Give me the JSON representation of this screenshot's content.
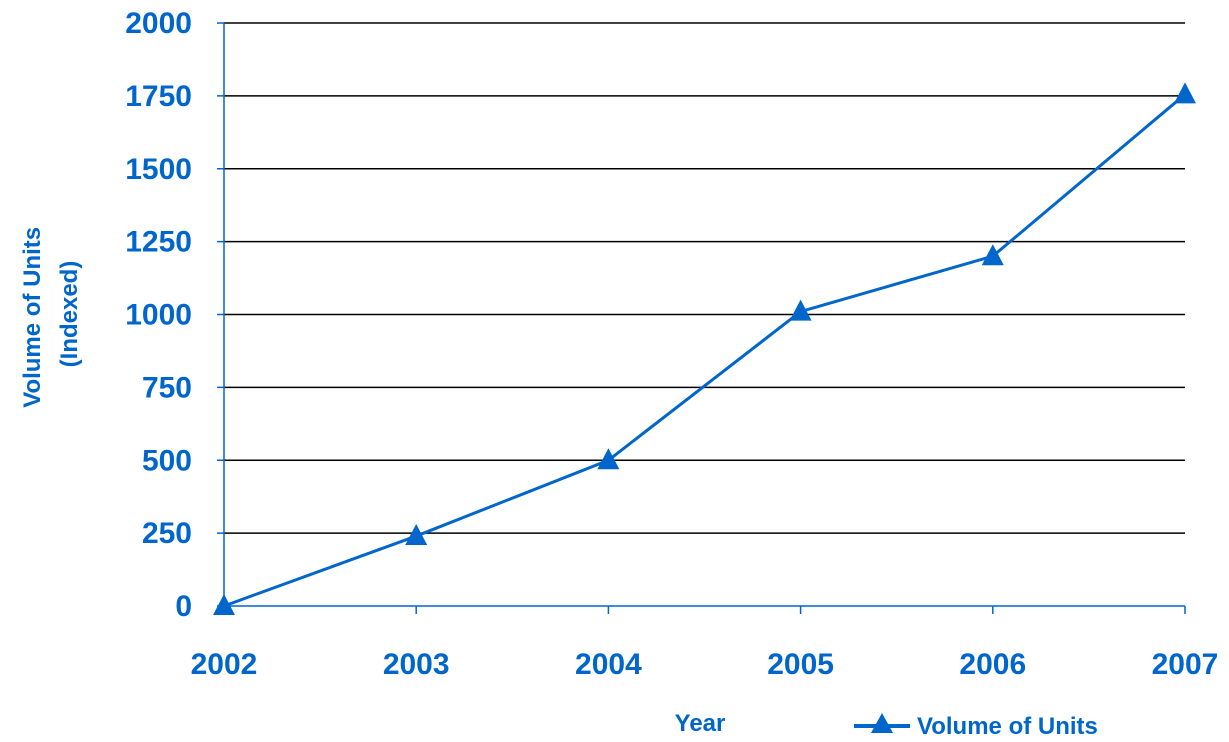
{
  "chart_data": {
    "type": "line",
    "title": "",
    "xlabel": "Year",
    "ylabel_line1": "Volume of Units",
    "ylabel_line2": "(Indexed)",
    "x": [
      "2002",
      "2003",
      "2004",
      "2005",
      "2006",
      "2007"
    ],
    "series": [
      {
        "name": "Volume of Units",
        "values": [
          0,
          240,
          500,
          1010,
          1200,
          1755
        ]
      }
    ],
    "ylim": [
      0,
      2000
    ],
    "yticks": [
      "0",
      "250",
      "500",
      "750",
      "1000",
      "1250",
      "1500",
      "1750",
      "2000"
    ],
    "grid": true,
    "legend_position": "bottom-right"
  },
  "colors": {
    "series": "#0066CC",
    "grid": "#000000",
    "text": "#0066CC"
  }
}
